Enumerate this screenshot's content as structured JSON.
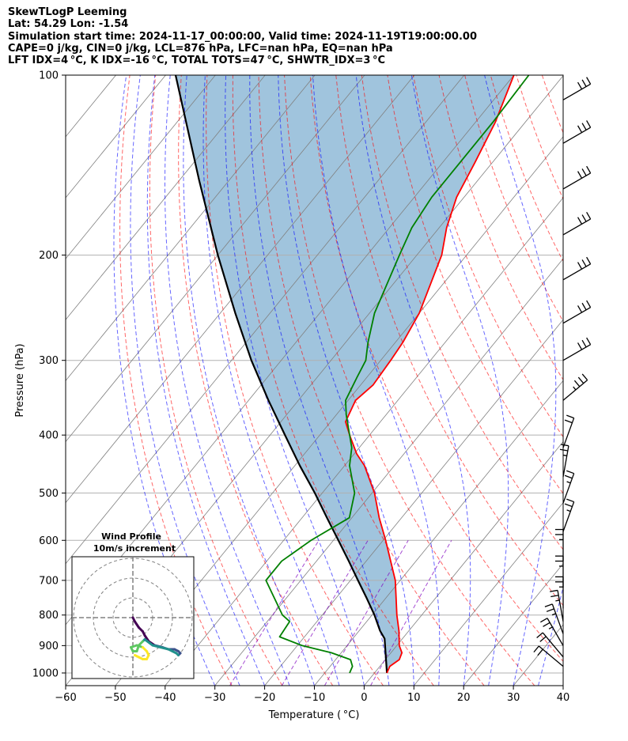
{
  "header": {
    "lines": [
      "SkewTLogP Leeming",
      "Lat: 54.29   Lon: -1.54",
      "Simulation start time: 2024-11-17_00:00:00, Valid time: 2024-11-19T19:00:00.00",
      "CAPE=0 j/kg, CIN=0 j/kg, LCL=876 hPa, LFC=nan hPa, EQ=nan hPa",
      "LFT IDX=4 °C, K IDX=-16 °C, TOTAL TOTS=47 °C, SHWTR_IDX=3 °C"
    ]
  },
  "chart_data": {
    "type": "line",
    "subtype": "skew-t log-p",
    "xlabel": "Temperature ( °C)",
    "ylabel": "Pressure (hPa)",
    "xlim": [
      -60,
      40
    ],
    "ylim": [
      1050,
      100
    ],
    "y_scale": "log",
    "grid": true,
    "x_ticks": [
      -60,
      -50,
      -40,
      -30,
      -20,
      -10,
      0,
      10,
      20,
      30,
      40
    ],
    "x_tick_labels": [
      "−60",
      "−50",
      "−40",
      "−30",
      "−20",
      "−10",
      "0",
      "10",
      "20",
      "30",
      "40"
    ],
    "y_ticks": [
      100,
      200,
      300,
      400,
      500,
      600,
      700,
      800,
      900,
      1000
    ],
    "y_tick_labels": [
      "100",
      "200",
      "300",
      "400",
      "500",
      "600",
      "700",
      "800",
      "900",
      "1000"
    ],
    "colors": {
      "temperature": "#ff0000",
      "dewpoint": "#008000",
      "parcel": "#000000",
      "fill": "#a0c4dd",
      "dry_adiabat": "#ff0000",
      "moist_adiabat": "#0000ff",
      "mixing_ratio": "#7f00bf",
      "isotherm": "#808080",
      "isobar": "#b0b0b0"
    },
    "series": [
      {
        "role": "temperature",
        "points": [
          [
            1000,
            2.5
          ],
          [
            975,
            2.0
          ],
          [
            950,
            2.8
          ],
          [
            925,
            2.2
          ],
          [
            900,
            0.5
          ],
          [
            850,
            -2.0
          ],
          [
            800,
            -5.0
          ],
          [
            700,
            -11.0
          ],
          [
            600,
            -19.5
          ],
          [
            550,
            -24.5
          ],
          [
            500,
            -29.5
          ],
          [
            450,
            -36.0
          ],
          [
            430,
            -39.5
          ],
          [
            400,
            -44.0
          ],
          [
            380,
            -47.0
          ],
          [
            350,
            -48.5
          ],
          [
            330,
            -47.5
          ],
          [
            300,
            -48.0
          ],
          [
            280,
            -48.5
          ],
          [
            250,
            -50.0
          ],
          [
            200,
            -55.0
          ],
          [
            180,
            -58.5
          ],
          [
            160,
            -61.5
          ],
          [
            140,
            -63.5
          ],
          [
            120,
            -66.0
          ],
          [
            100,
            -70.0
          ]
        ]
      },
      {
        "role": "dewpoint",
        "points": [
          [
            1000,
            -5.0
          ],
          [
            975,
            -5.5
          ],
          [
            950,
            -7.0
          ],
          [
            925,
            -12.0
          ],
          [
            900,
            -19.0
          ],
          [
            870,
            -25.0
          ],
          [
            820,
            -25.5
          ],
          [
            800,
            -28.0
          ],
          [
            700,
            -37.0
          ],
          [
            650,
            -37.0
          ],
          [
            600,
            -34.5
          ],
          [
            550,
            -30.5
          ],
          [
            500,
            -33.5
          ],
          [
            450,
            -39.0
          ],
          [
            420,
            -41.5
          ],
          [
            400,
            -44.0
          ],
          [
            370,
            -48.0
          ],
          [
            350,
            -50.5
          ],
          [
            320,
            -52.0
          ],
          [
            300,
            -53.0
          ],
          [
            280,
            -55.5
          ],
          [
            250,
            -59.0
          ],
          [
            200,
            -63.5
          ],
          [
            180,
            -65.5
          ],
          [
            160,
            -66.5
          ],
          [
            140,
            -66.5
          ],
          [
            120,
            -66.5
          ],
          [
            100,
            -67.0
          ]
        ]
      },
      {
        "role": "parcel",
        "points": [
          [
            1000,
            2.5
          ],
          [
            876,
            -3.6
          ],
          [
            850,
            -5.8
          ],
          [
            800,
            -9.5
          ],
          [
            750,
            -13.8
          ],
          [
            700,
            -18.5
          ],
          [
            650,
            -23.5
          ],
          [
            600,
            -29.0
          ],
          [
            550,
            -35.0
          ],
          [
            500,
            -41.5
          ],
          [
            450,
            -49.0
          ],
          [
            400,
            -57.0
          ],
          [
            350,
            -66.0
          ],
          [
            300,
            -76.0
          ],
          [
            250,
            -87.0
          ],
          [
            200,
            -100.0
          ],
          [
            150,
            -116.0
          ],
          [
            100,
            -138.0
          ]
        ]
      }
    ],
    "wind_barbs": [
      {
        "p": 110,
        "speed_kt": 30,
        "dir": 240
      },
      {
        "p": 130,
        "speed_kt": 30,
        "dir": 240
      },
      {
        "p": 155,
        "speed_kt": 30,
        "dir": 240
      },
      {
        "p": 185,
        "speed_kt": 30,
        "dir": 240
      },
      {
        "p": 220,
        "speed_kt": 30,
        "dir": 240
      },
      {
        "p": 260,
        "speed_kt": 30,
        "dir": 240
      },
      {
        "p": 300,
        "speed_kt": 30,
        "dir": 240
      },
      {
        "p": 350,
        "speed_kt": 25,
        "dir": 230
      },
      {
        "p": 420,
        "speed_kt": 20,
        "dir": 200
      },
      {
        "p": 470,
        "speed_kt": 15,
        "dir": 190
      },
      {
        "p": 520,
        "speed_kt": 15,
        "dir": 200
      },
      {
        "p": 580,
        "speed_kt": 15,
        "dir": 200
      },
      {
        "p": 650,
        "speed_kt": 15,
        "dir": 180
      },
      {
        "p": 720,
        "speed_kt": 15,
        "dir": 180
      },
      {
        "p": 780,
        "speed_kt": 15,
        "dir": 180
      },
      {
        "p": 820,
        "speed_kt": 15,
        "dir": 170
      },
      {
        "p": 860,
        "speed_kt": 15,
        "dir": 160
      },
      {
        "p": 900,
        "speed_kt": 15,
        "dir": 150
      },
      {
        "p": 940,
        "speed_kt": 20,
        "dir": 140
      },
      {
        "p": 975,
        "speed_kt": 20,
        "dir": 130
      }
    ],
    "inset": {
      "title": "Wind Profile",
      "subtitle": "10m/s increment",
      "rings_ms": [
        10,
        20,
        30
      ],
      "hodograph": [
        [
          0,
          0
        ],
        [
          1,
          -2
        ],
        [
          3,
          -5
        ],
        [
          5,
          -7
        ],
        [
          6,
          -9
        ],
        [
          8,
          -12
        ],
        [
          11,
          -14
        ],
        [
          15,
          -15
        ],
        [
          18,
          -16
        ],
        [
          21,
          -16
        ],
        [
          23,
          -17
        ],
        [
          24,
          -18
        ],
        [
          23,
          -19
        ],
        [
          22,
          -18
        ],
        [
          20,
          -17
        ],
        [
          18,
          -16
        ],
        [
          14,
          -15
        ],
        [
          10,
          -14
        ],
        [
          6,
          -11
        ],
        [
          5,
          -12
        ],
        [
          3,
          -14
        ],
        [
          2,
          -17
        ],
        [
          0,
          -17
        ],
        [
          -1,
          -15
        ],
        [
          2,
          -14
        ],
        [
          5,
          -15
        ],
        [
          7,
          -17
        ],
        [
          8,
          -19
        ],
        [
          7,
          -21
        ],
        [
          5,
          -21
        ],
        [
          3,
          -20
        ],
        [
          1,
          -19
        ]
      ]
    }
  }
}
